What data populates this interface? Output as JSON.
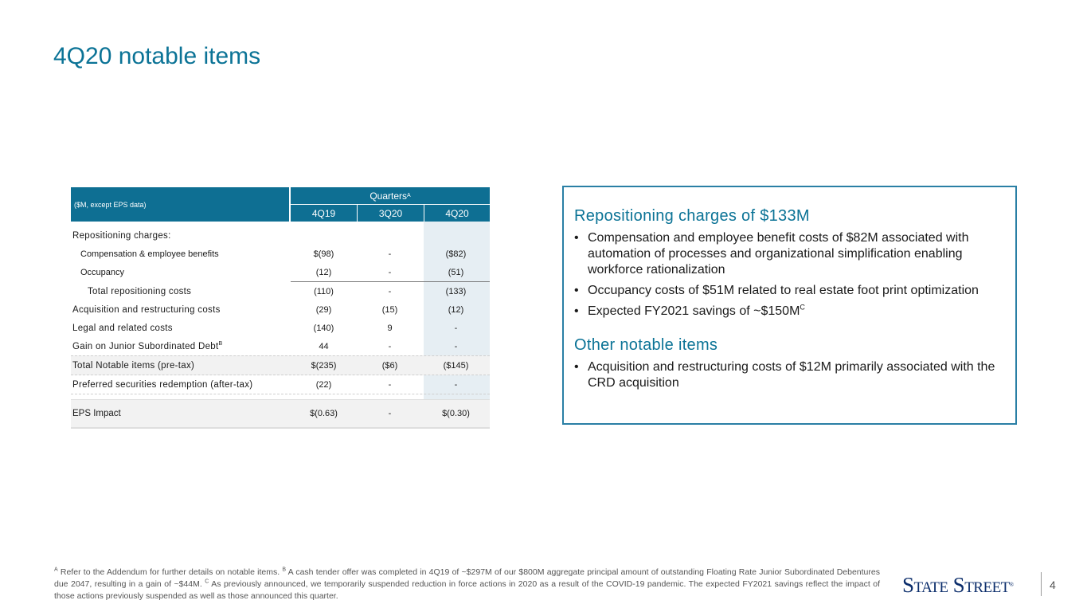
{
  "title": "4Q20 notable items",
  "table": {
    "header_note": "($M, except EPS data)",
    "group_label": "Quarters",
    "group_sup": "A",
    "columns": [
      "4Q19",
      "3Q20",
      "4Q20"
    ],
    "rows": [
      {
        "label": "Repositioning charges:",
        "values": [
          "",
          "",
          ""
        ]
      },
      {
        "label": "Compensation & employee benefits",
        "values": [
          "$(98)",
          "-",
          "($82)"
        ]
      },
      {
        "label": "Occupancy",
        "values": [
          "(12)",
          "-",
          "(51)"
        ]
      },
      {
        "label": "Total repositioning costs",
        "values": [
          "(110)",
          "-",
          "(133)"
        ]
      },
      {
        "label": "Acquisition and restructuring costs",
        "values": [
          "(29)",
          "(15)",
          "(12)"
        ]
      },
      {
        "label": "Legal and related costs",
        "values": [
          "(140)",
          "9",
          "-"
        ]
      },
      {
        "label": "Gain on Junior Subordinated Debt",
        "sup": "B",
        "values": [
          "44",
          "-",
          "-"
        ]
      },
      {
        "label": "Total Notable items (pre-tax)",
        "values": [
          "$(235)",
          "($6)",
          "($145)"
        ]
      },
      {
        "label": "Preferred securities redemption (after-tax)",
        "values": [
          "(22)",
          "-",
          "-"
        ]
      },
      {
        "label": "EPS Impact",
        "values": [
          "$(0.63)",
          "-",
          "$(0.30)"
        ]
      }
    ]
  },
  "callout": {
    "section1_title": "Repositioning charges of $133M",
    "section1_bullets": [
      "Compensation and employee benefit costs of $82M associated with automation of processes and organizational simplification enabling workforce rationalization",
      "Occupancy costs of $51M related to real estate foot print optimization",
      "Expected FY2021 savings of ~$150M"
    ],
    "section1_bullet3_sup": "C",
    "section2_title": "Other notable items",
    "section2_bullets": [
      "Acquisition and restructuring costs of $12M primarily associated with the CRD acquisition"
    ],
    "bullet_char": "•"
  },
  "footnote": {
    "a_mark": "A",
    "a_text": " Refer to the Addendum for further details on notable items. ",
    "b_mark": "B",
    "b_text": " A cash tender offer was completed in 4Q19 of ~$297M of our $800M aggregate principal amount of outstanding Floating Rate Junior Subordinated Debentures due 2047, resulting in a gain of ~$44M. ",
    "c_mark": "C",
    "c_text": " As previously announced, we temporarily suspended reduction in force actions in 2020 as a result of the COVID-19 pandemic. The expected FY2021 savings reflect the impact of those actions previously suspended as well as those announced this quarter."
  },
  "logo": {
    "text": "State Street",
    "reg": "®"
  },
  "page_number": "4",
  "colors": {
    "brand_teal": "#0b7396",
    "header_fill": "#0e6f93",
    "logo_navy": "#0b2d6b"
  }
}
